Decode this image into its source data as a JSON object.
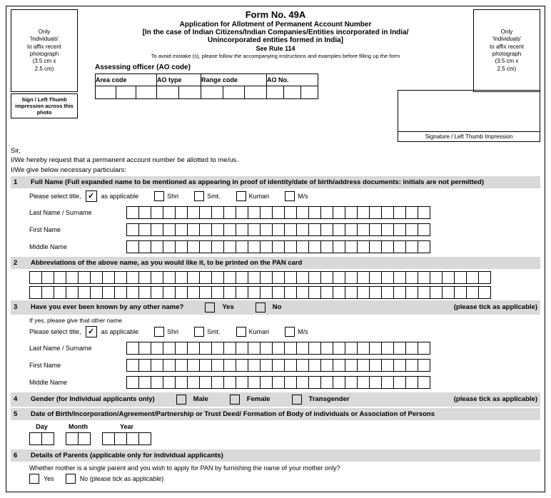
{
  "header": {
    "form_no": "Form No. 49A",
    "title": "Application for Allotment of Permanent Account Number",
    "subtitle1": "[In the case of Indian Citizens/Indian Companies/Entities incorporated in India/",
    "subtitle2": "Unincorporated entities formed in India]",
    "see_rule": "See Rule 114",
    "instruction": "To avoid mistake (s), please follow the accompanying instructions and examples before filling up the form",
    "photo_text": "Only\n'Individuals'\nto affix recent\nphotograph\n(3.5 cm x\n2.5 cm)",
    "sign_text": "Sign / Left Thumb impression across this photo",
    "sig_label": "Signature / Left Thumb Impression"
  },
  "ao": {
    "title": "Assessing officer (AO code)",
    "cols": {
      "area": "Area code",
      "type": "AO type",
      "range": "Range code",
      "no": "AO No."
    }
  },
  "intro": {
    "sir": "Sir,",
    "line1": "I/We hereby request that a permanent account number be allotted to me/us.",
    "line2": "I/We give below necessary particulars:"
  },
  "sections": {
    "s1": {
      "num": "1",
      "text": "Full Name (Full expanded name to be mentioned as appearing in proof of identity/date of birth/address documents: initials are not permitted)"
    },
    "s2": {
      "num": "2",
      "text": "Abbreviations of the above name, as you would like it, to be printed on the PAN card"
    },
    "s3": {
      "num": "3",
      "text": "Have you ever been known by any other name?",
      "yes": "Yes",
      "no": "No",
      "tick": "(please tick as applicable)"
    },
    "s4": {
      "num": "4",
      "text": "Gender (for Individual applicants only)",
      "male": "Male",
      "female": "Female",
      "trans": "Transgender",
      "tick": "(please tick as applicable)"
    },
    "s5": {
      "num": "5",
      "text": "Date of Birth/Incorporation/Agreement/Partnership or Trust Deed/ Formation of Body of individuals or Association of Persons"
    },
    "s6": {
      "num": "6",
      "text": "Details of Parents (applicable only for individual applicants)"
    }
  },
  "labels": {
    "select_title": "Please select title,",
    "as_applicable": "as applicable",
    "shri": "Shri",
    "smt": "Smt.",
    "kumari": "Kumari",
    "ms": "M/s",
    "last": "Last Name / Surname",
    "first": "First Name",
    "middle": "Middle Name",
    "if_yes": "If yes, please give that other name",
    "day": "Day",
    "month": "Month",
    "year": "Year",
    "parent_q": "Whether mother is a single parent and you wish to apply for PAN by furnishing the name of your mother only?",
    "yes": "Yes",
    "no_tick": "No (please tick as applicable)",
    "tick_mark": "✓"
  },
  "grid": {
    "name_cells": 25,
    "abbr_cells": 38
  },
  "colors": {
    "section_bg": "#d9d9d9",
    "border": "#000000",
    "bg": "#ffffff"
  }
}
